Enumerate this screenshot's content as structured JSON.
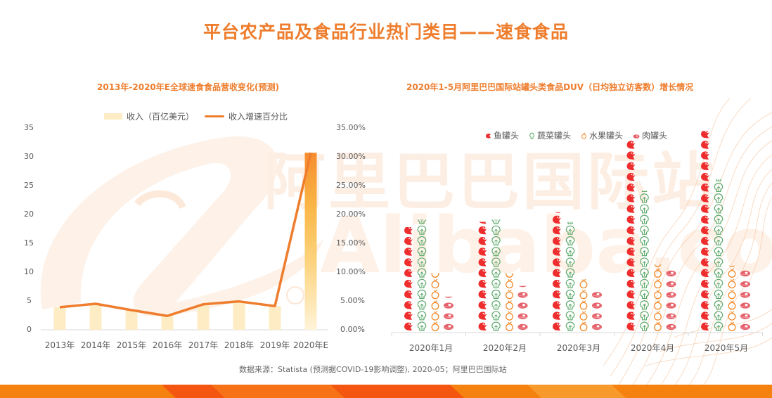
{
  "page": {
    "title": "平台农产品及食品行业热门类目——速食食品",
    "source_note": "数据来源：Statista (预测据COVID-19影响调整), 2020-05；阿里巴巴国际站",
    "watermark_cn": "阿里巴巴国际站",
    "watermark_en": "Alibaba.com"
  },
  "colors": {
    "title_orange": "#ee7d2d",
    "bar_light": "#fdecc4",
    "bar_highlight_top": "#f68c2e",
    "bar_highlight_mid": "#f9c14f",
    "line_orange": "#ee7d2d",
    "fish_red": "#ee2e2e",
    "veg_green": "#5aa96a",
    "fruit_orange": "#f28a2a",
    "meat_pink": "#e5616a",
    "band_orange": "#f5820f",
    "band_dark": "#f45510"
  },
  "left_chart": {
    "subtitle": "2013年-2020年E全球速食食品营收变化(预测)",
    "legend": {
      "bar": "收入（百亿美元）",
      "line": "收入增速百分比"
    },
    "y_left_ticks": [
      "35",
      "30",
      "25",
      "20",
      "15",
      "10",
      "5",
      "0"
    ],
    "y_right_ticks": [
      "35.00%",
      "30.00%",
      "25.00%",
      "20.00%",
      "15.00%",
      "10.00%",
      "5.00%",
      "0.00%"
    ],
    "x_labels": [
      "2013年",
      "2014年",
      "2015年",
      "2016年",
      "2017年",
      "2018年",
      "2019年",
      "2020年E"
    ]
  },
  "right_chart": {
    "subtitle": "2020年1-5月阿里巴巴国际站罐头类食品DUV（日均独立访客数）增长情况",
    "legend": [
      {
        "name": "鱼罐头",
        "icon": "fish-icon"
      },
      {
        "name": "蔬菜罐头",
        "icon": "vegetable-icon"
      },
      {
        "name": "水果罐头",
        "icon": "fruit-icon"
      },
      {
        "name": "肉罐头",
        "icon": "meat-icon"
      }
    ],
    "x_labels": [
      "2020年1月",
      "2020年2月",
      "2020年3月",
      "2020年4月",
      "2020年5月"
    ]
  },
  "chart_data": [
    {
      "type": "bar",
      "title": "2013年-2020年E全球速食食品营收变化(预测)",
      "categories": [
        "2013年",
        "2014年",
        "2015年",
        "2016年",
        "2017年",
        "2018年",
        "2019年",
        "2020年E"
      ],
      "series": [
        {
          "name": "收入（百亿美元）",
          "type": "bar",
          "axis": "left",
          "values": [
            3.9,
            4.5,
            3.4,
            2.5,
            4.4,
            4.9,
            4.1,
            30.6
          ]
        },
        {
          "name": "收入增速百分比",
          "type": "line",
          "axis": "right",
          "values": [
            3.9,
            4.5,
            3.4,
            2.4,
            4.4,
            4.9,
            4.1,
            30.6
          ],
          "unit": "%"
        }
      ],
      "ylim_left": [
        0,
        35
      ],
      "ylim_right": [
        0,
        35
      ],
      "y_left_ticks": [
        0,
        5,
        10,
        15,
        20,
        25,
        30,
        35
      ],
      "y_right_ticks": [
        "0.00%",
        "5.00%",
        "10.00%",
        "15.00%",
        "20.00%",
        "25.00%",
        "30.00%",
        "35.00%"
      ],
      "xlabel": "",
      "ylabel": "",
      "legend_position": "top",
      "grid": false
    },
    {
      "type": "bar",
      "subtype": "pictograph",
      "title": "2020年1-5月阿里巴巴国际站罐头类食品DUV（日均独立访客数）增长情况",
      "categories": [
        "2020年1月",
        "2020年2月",
        "2020年3月",
        "2020年4月",
        "2020年5月"
      ],
      "series": [
        {
          "name": "鱼罐头",
          "values": [
            9.8,
            10.3,
            11.2,
            18.0,
            18.8
          ]
        },
        {
          "name": "蔬菜罐头",
          "values": [
            10.5,
            10.5,
            10.3,
            13.2,
            14.3
          ]
        },
        {
          "name": "水果罐头",
          "values": [
            5.5,
            5.5,
            5.0,
            6.3,
            6.2
          ]
        },
        {
          "name": "肉罐头",
          "values": [
            3.3,
            4.3,
            4.0,
            6.0,
            6.0
          ]
        }
      ],
      "unit": "relative icon units (no axis shown)",
      "legend_position": "top",
      "grid": false
    }
  ]
}
